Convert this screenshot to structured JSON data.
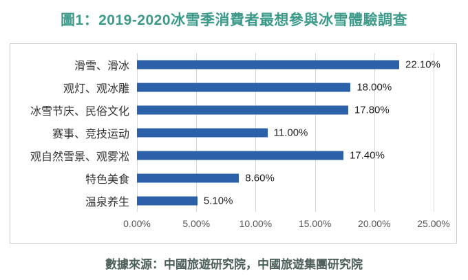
{
  "title": "圖1：2019-2020冰雪季消費者最想參與冰雪體驗調查",
  "footer": {
    "source": "數據來源：中國旅遊研究院，中國旅遊集團研究院"
  },
  "colors": {
    "title": "#3B9A8A",
    "bar": "#2A61A8",
    "grid": "#D6D6D6",
    "border": "#C9C9C9",
    "footer": "#4D5F5B"
  },
  "chart_data": {
    "type": "bar",
    "orientation": "horizontal",
    "title": "圖1：2019-2020冰雪季消費者最想參與冰雪體驗調查",
    "categories": [
      "滑雪、滑冰",
      "观灯、观冰雕",
      "冰雪节庆、民俗文化",
      "赛事、竞技运动",
      "观自然雪景、观雾凇",
      "特色美食",
      "温泉养生"
    ],
    "values": [
      22.1,
      18.0,
      17.8,
      11.0,
      17.4,
      8.6,
      5.1
    ],
    "value_labels": [
      "22.10%",
      "18.00%",
      "17.80%",
      "11.00%",
      "17.40%",
      "8.60%",
      "5.10%"
    ],
    "x_ticks": [
      "0.00%",
      "5.00%",
      "10.00%",
      "15.00%",
      "20.00%",
      "25.00%"
    ],
    "xlim": [
      0,
      25
    ],
    "xlabel": "",
    "ylabel": "",
    "grid": true,
    "legend": false,
    "annotation": "數據來源：中國旅遊研究院，中國旅遊集團研究院"
  }
}
